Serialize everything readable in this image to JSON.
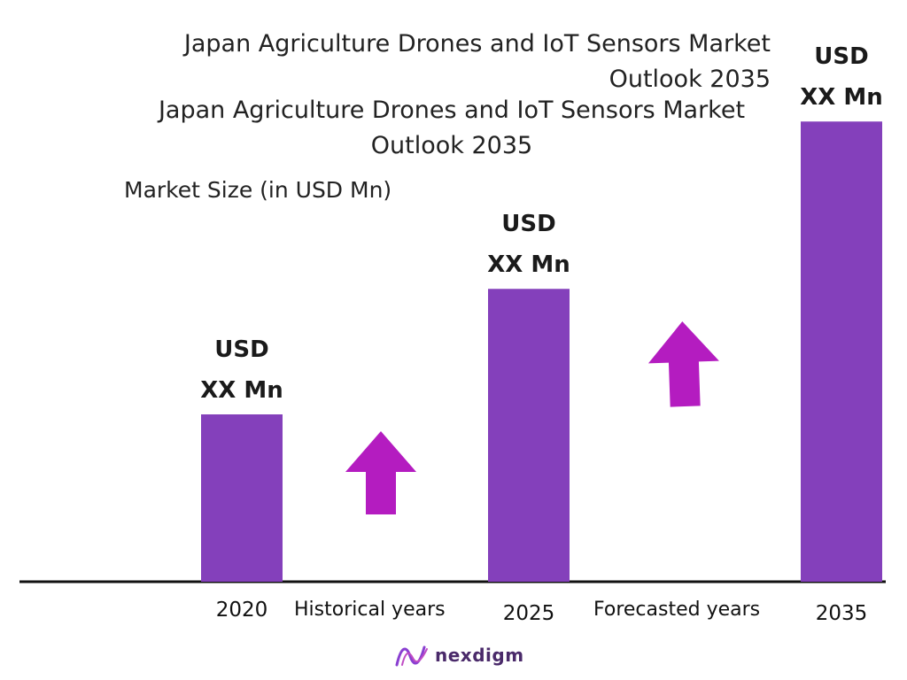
{
  "titles": {
    "title_a": "Japan Agriculture Drones and IoT Sensors Market Outlook 2035",
    "title_b": "Japan Agriculture Drones and IoT Sensors Market Outlook 2035",
    "ylabel": "Market Size (in USD Mn)"
  },
  "periods": {
    "historical": "Historical years",
    "forecast": "Forecasted years"
  },
  "brand": {
    "name": "nexdigm"
  },
  "colors": {
    "bar": "#8440BB",
    "arrow": "#B41CC0",
    "axis": "#111111"
  },
  "chart_data": {
    "type": "bar",
    "title": "Japan Agriculture Drones and IoT Sensors Market Outlook 2035",
    "ylabel": "Market Size (in USD Mn)",
    "categories": [
      "2020",
      "2025",
      "2035"
    ],
    "values": [
      2.0,
      3.5,
      5.5
    ],
    "value_labels": [
      "USD XX Mn",
      "USD XX Mn",
      "USD XX Mn"
    ],
    "ylim": [
      0,
      6
    ],
    "grid": false,
    "annotations": [
      "Historical years",
      "Forecasted years"
    ]
  }
}
